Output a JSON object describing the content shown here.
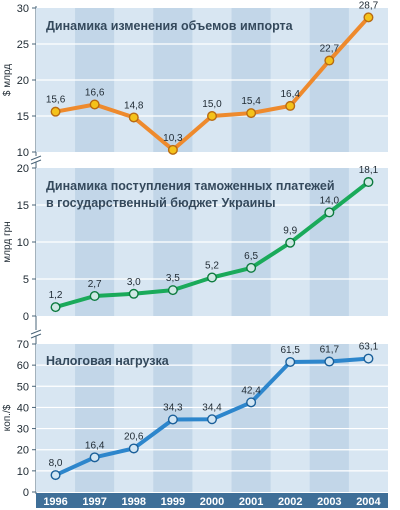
{
  "chart_data": [
    {
      "type": "line",
      "title": "Динамика изменения объемов импорта",
      "ylabel": "$ млрд",
      "categories": [
        "1996",
        "1997",
        "1998",
        "1999",
        "2000",
        "2001",
        "2002",
        "2003",
        "2004"
      ],
      "values": [
        15.6,
        16.6,
        14.8,
        10.3,
        15.0,
        15.4,
        16.4,
        22.7,
        28.7
      ],
      "labels": [
        "15,6",
        "16,6",
        "14,8",
        "10,3",
        "15,0",
        "15,4",
        "16,4",
        "22,7",
        "28,7"
      ],
      "yticks": [
        "10",
        "15",
        "20",
        "25",
        "30"
      ],
      "ylim": [
        10,
        30
      ],
      "grid": true,
      "colors": {
        "line": "#ee8a2d",
        "marker": "#f4c21a",
        "marker_stroke": "#b86a12"
      }
    },
    {
      "type": "line",
      "title": "Динамика поступления таможенных платежей в государственный бюджет Украины",
      "title_lines": [
        "Динамика поступления таможенных платежей",
        "в государственный бюджет Украины"
      ],
      "ylabel": "млрд грн",
      "categories": [
        "1996",
        "1997",
        "1998",
        "1999",
        "2000",
        "2001",
        "2002",
        "2003",
        "2004"
      ],
      "values": [
        1.2,
        2.7,
        3.0,
        3.5,
        5.2,
        6.5,
        9.9,
        14.0,
        18.1
      ],
      "labels": [
        "1,2",
        "2,7",
        "3,0",
        "3,5",
        "5,2",
        "6,5",
        "9,9",
        "14,0",
        "18,1"
      ],
      "yticks": [
        "0",
        "5",
        "10",
        "15",
        "20"
      ],
      "ylim": [
        0,
        20
      ],
      "grid": true,
      "colors": {
        "line": "#1aaa5a",
        "marker": "#cfe8e4",
        "marker_stroke": "#0c7a3e"
      }
    },
    {
      "type": "line",
      "title": "Налоговая нагрузка",
      "ylabel": "коп./$",
      "categories": [
        "1996",
        "1997",
        "1998",
        "1999",
        "2000",
        "2001",
        "2002",
        "2003",
        "2004"
      ],
      "values": [
        8.0,
        16.4,
        20.6,
        34.3,
        34.4,
        42.4,
        61.5,
        61.7,
        63.1
      ],
      "labels": [
        "8,0",
        "16,4",
        "20,6",
        "34,3",
        "34,4",
        "42,4",
        "61,5",
        "61,7",
        "63,1"
      ],
      "yticks": [
        "0",
        "10",
        "20",
        "30",
        "40",
        "50",
        "60",
        "70"
      ],
      "ylim": [
        0,
        70
      ],
      "grid": true,
      "colors": {
        "line": "#2d86cc",
        "marker": "#d2e6f4",
        "marker_stroke": "#1a5f99"
      }
    }
  ],
  "x_axis": {
    "categories": [
      "1996",
      "1997",
      "1998",
      "1999",
      "2000",
      "2001",
      "2002",
      "2003",
      "2004"
    ]
  },
  "colors": {
    "panel_background": "#c9dcec",
    "stripe_light": "#d8e6f2",
    "stripe_dark": "#c2d6e8",
    "grid_line": "#ffffff",
    "axis_line": "#4a6478",
    "title_text": "#34495c",
    "xaxis_background": "#3f6f98",
    "xaxis_text": "#ffffff",
    "tick_text": "#1f2a33",
    "label_text": "#1f2a33"
  }
}
